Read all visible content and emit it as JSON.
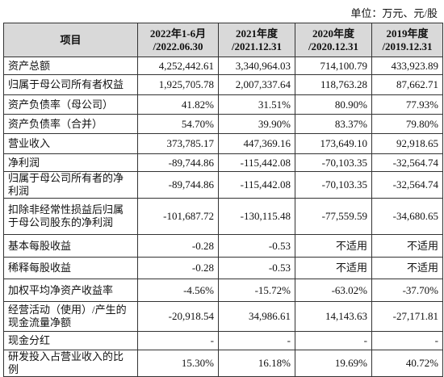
{
  "unit": "单位：万元、元/股",
  "table": {
    "header": [
      [
        "项目"
      ],
      [
        "2022年1-6月",
        "/2022.06.30"
      ],
      [
        "2021年度",
        "/2021.12.31"
      ],
      [
        "2020年度",
        "/2020.12.31"
      ],
      [
        "2019年度",
        "/2019.12.31"
      ]
    ],
    "rows": [
      [
        "资产总额",
        "4,252,442.61",
        "3,340,964.03",
        "714,100.79",
        "433,923.89"
      ],
      [
        "归属于母公司所有者权益",
        "1,925,705.78",
        "2,007,337.64",
        "118,763.28",
        "87,662.71"
      ],
      [
        "资产负债率（母公司）",
        "41.82%",
        "31.51%",
        "80.90%",
        "77.93%"
      ],
      [
        "资产负债率（合并）",
        "54.70%",
        "39.90%",
        "83.37%",
        "79.80%"
      ],
      [
        "营业收入",
        "373,785.17",
        "447,369.16",
        "173,649.10",
        "92,918.65"
      ],
      [
        "净利润",
        "-89,744.86",
        "-115,442.08",
        "-70,103.35",
        "-32,564.74"
      ],
      [
        "归属于母公司所有者的净利润",
        "-89,744.86",
        "-115,442.08",
        "-70,103.35",
        "-32,564.74"
      ],
      [
        "扣除非经常性损益后归属于母公司股东的净利润",
        "-101,687.72",
        "-130,115.48",
        "-77,559.59",
        "-34,680.65"
      ],
      [
        "基本每股收益",
        "-0.28",
        "-0.53",
        "不适用",
        "不适用"
      ],
      [
        "稀释每股收益",
        "-0.28",
        "-0.53",
        "不适用",
        "不适用"
      ],
      [
        "加权平均净资产收益率",
        "-4.56%",
        "-15.72%",
        "-63.02%",
        "-37.70%"
      ],
      [
        "经营活动（使用）/产生的现金流量净额",
        "-20,918.54",
        "34,986.61",
        "14,143.63",
        "-27,171.81"
      ],
      [
        "现金分红",
        "-",
        "-",
        "-",
        "-"
      ],
      [
        "研发投入占营业收入的比例",
        "15.30%",
        "16.18%",
        "19.69%",
        "40.72%"
      ]
    ]
  }
}
